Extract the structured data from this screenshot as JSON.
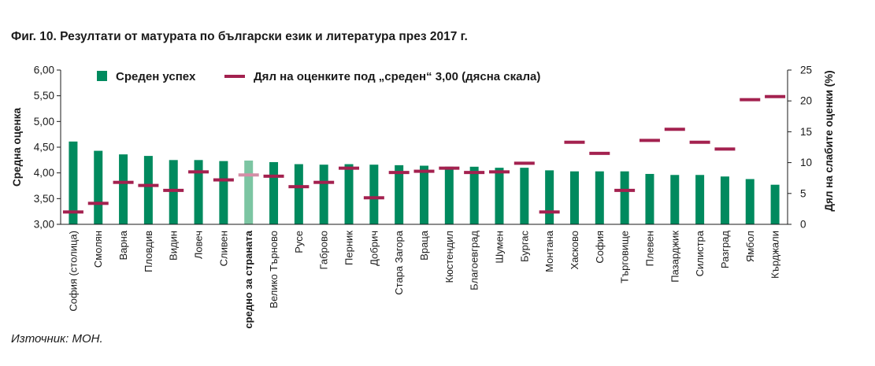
{
  "figure": {
    "title": "Фиг. 10. Резултати от матурата по български език и литература през 2017 г.",
    "source": "Източник: МОН."
  },
  "colors": {
    "bar": "#008a5e",
    "bar_highlight": "#7cc5a2",
    "marker": "#a3214f",
    "marker_highlight": "#d48ea6",
    "axis": "#1a1a1a"
  },
  "chart_data": {
    "type": "bar",
    "title": "Фиг. 10. Резултати от матурата по български език и литература през 2017 г.",
    "ylabel": "Средна оценка",
    "y2label": "Дял на слабите оценки (%)",
    "ylim": [
      3.0,
      6.0
    ],
    "y2lim": [
      0,
      25
    ],
    "yticks": [
      "3,00",
      "3,50",
      "4,00",
      "4,50",
      "5,00",
      "5,50",
      "6,00"
    ],
    "y2ticks": [
      "0",
      "5",
      "10",
      "15",
      "20",
      "25"
    ],
    "legend_position": "top",
    "highlight_category": "средно за страната",
    "categories": [
      "София (столица)",
      "Смолян",
      "Варна",
      "Пловдив",
      "Видин",
      "Ловеч",
      "Сливен",
      "средно за страната",
      "Велико Търново",
      "Русе",
      "Габрово",
      "Перник",
      "Добрич",
      "Стара Загора",
      "Враца",
      "Кюстендил",
      "Благоевград",
      "Шумен",
      "Бургас",
      "Монтана",
      "Хасково",
      "София",
      "Търговище",
      "Плевен",
      "Пазарджик",
      "Силистра",
      "Разград",
      "Ямбол",
      "Кърджали"
    ],
    "series": [
      {
        "name": "Среден успех",
        "kind": "bar",
        "axis": "left",
        "values": [
          4.61,
          4.43,
          4.36,
          4.33,
          4.25,
          4.25,
          4.23,
          4.24,
          4.21,
          4.17,
          4.16,
          4.17,
          4.16,
          4.15,
          4.14,
          4.12,
          4.12,
          4.1,
          4.1,
          4.05,
          4.03,
          4.03,
          4.03,
          3.98,
          3.96,
          3.96,
          3.93,
          3.88,
          3.77
        ]
      },
      {
        "name": "Дял на оценките под „среден“ 3,00 (дясна скала)",
        "kind": "marker",
        "axis": "right",
        "values": [
          2.0,
          3.4,
          6.8,
          6.3,
          5.5,
          8.5,
          7.2,
          8.0,
          7.8,
          6.1,
          6.8,
          9.1,
          4.3,
          8.4,
          8.6,
          9.1,
          8.4,
          8.5,
          9.9,
          2.0,
          13.3,
          11.5,
          5.5,
          13.6,
          15.4,
          13.3,
          12.2,
          20.2,
          20.7
        ]
      }
    ]
  }
}
